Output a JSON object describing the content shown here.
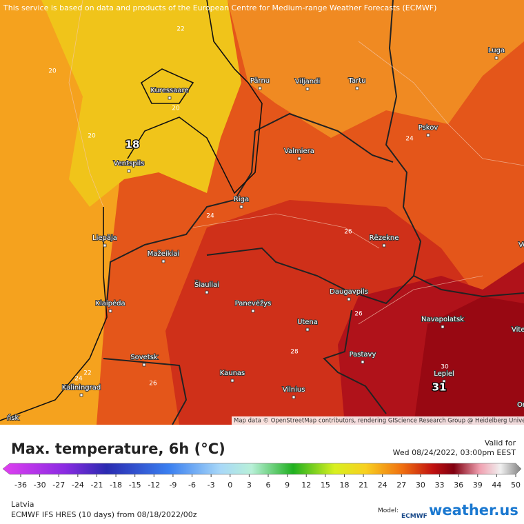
{
  "notice": "This service is based on data and products of the European Centre for Medium-range Weather Forecasts (ECMWF)",
  "map": {
    "cities": [
      "Luga",
      "Pärnu",
      "Viljandi",
      "Tartu",
      "Kuressaare",
      "Pskov",
      "Valmiera",
      "Ventspils",
      "Riga",
      "Rēzekne",
      "Liepāja",
      "Mažeikiai",
      "Šiauliai",
      "Klaipėda",
      "Daugavpils",
      "Panevėžys",
      "Navapolatsk",
      "Utena",
      "Vitebsk",
      "Sovetsk",
      "Pastavy",
      "Kaunas",
      "Lepiel",
      "Kaliningrad",
      "Vilnius",
      "Vel",
      "Ors",
      "ńsk"
    ],
    "contour_labels": [
      22,
      20,
      20,
      20,
      24,
      24,
      26,
      26,
      28,
      22,
      24,
      26,
      30
    ],
    "extremes": [
      18,
      31
    ],
    "attribution": "Map data © OpenStreetMap contributors, rendering GIScience Research Group @ Heidelberg University"
  },
  "legend": {
    "title": "Max. temperature, 6h (°C)",
    "valid_label": "Valid for",
    "valid_time": "Wed 08/24/2022, 03:00pm EEST",
    "colorbar_ticks": [
      -36,
      -30,
      -27,
      -24,
      -21,
      -18,
      -15,
      -12,
      -9,
      -6,
      -3,
      0,
      3,
      6,
      9,
      12,
      15,
      18,
      21,
      24,
      27,
      30,
      33,
      36,
      39,
      44,
      50
    ],
    "region": "Latvia",
    "model_run": "ECMWF IFS HRES (10 days) from 08/18/2022/00z",
    "model_label": "Model:",
    "model_logo": "ECMWF",
    "brand": "weather.us"
  }
}
